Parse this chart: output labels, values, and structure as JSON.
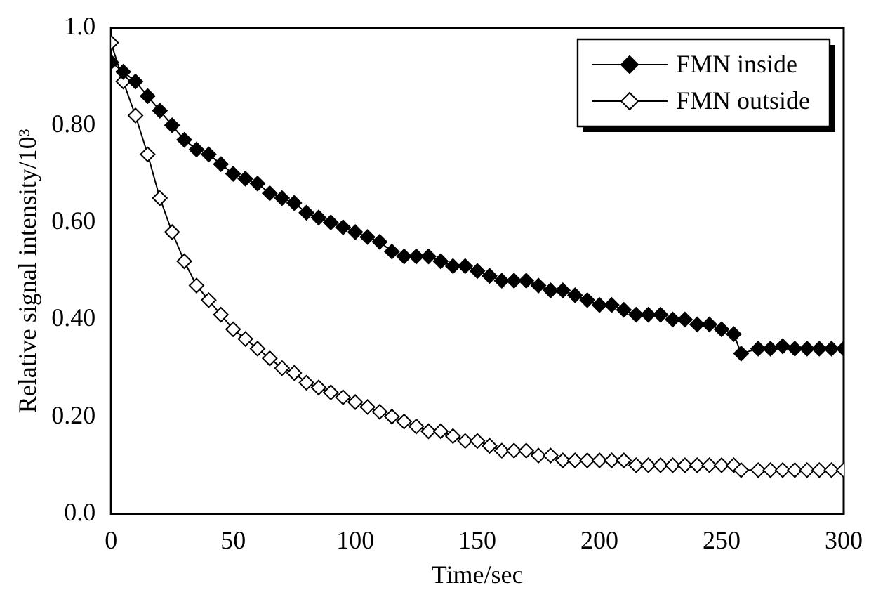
{
  "chart_data": {
    "type": "line",
    "xlabel": "Time/sec",
    "ylabel": "Relative signal intensity/10³",
    "x": [
      0,
      5,
      10,
      15,
      20,
      25,
      30,
      35,
      40,
      45,
      50,
      55,
      60,
      65,
      70,
      75,
      80,
      85,
      90,
      95,
      100,
      105,
      110,
      115,
      120,
      125,
      130,
      135,
      140,
      145,
      150,
      155,
      160,
      165,
      170,
      175,
      180,
      185,
      190,
      195,
      200,
      205,
      210,
      215,
      220,
      225,
      230,
      235,
      240,
      245,
      250,
      255,
      258,
      265,
      270,
      275,
      280,
      285,
      290,
      295,
      300
    ],
    "series": [
      {
        "name": "FMN inside",
        "color": "#000000",
        "values": [
          0.93,
          0.91,
          0.89,
          0.86,
          0.83,
          0.8,
          0.77,
          0.75,
          0.74,
          0.72,
          0.7,
          0.69,
          0.68,
          0.66,
          0.65,
          0.64,
          0.62,
          0.61,
          0.6,
          0.59,
          0.58,
          0.57,
          0.56,
          0.54,
          0.53,
          0.53,
          0.53,
          0.52,
          0.51,
          0.51,
          0.5,
          0.49,
          0.48,
          0.48,
          0.48,
          0.47,
          0.46,
          0.46,
          0.45,
          0.44,
          0.43,
          0.43,
          0.42,
          0.41,
          0.41,
          0.41,
          0.4,
          0.4,
          0.39,
          0.39,
          0.38,
          0.37,
          0.33,
          0.34,
          0.34,
          0.345,
          0.34,
          0.34,
          0.34,
          0.34,
          0.34
        ]
      },
      {
        "name": "FMN outside",
        "color": "#000000",
        "values": [
          0.97,
          0.89,
          0.82,
          0.74,
          0.65,
          0.58,
          0.52,
          0.47,
          0.44,
          0.41,
          0.38,
          0.36,
          0.34,
          0.32,
          0.3,
          0.29,
          0.27,
          0.26,
          0.25,
          0.24,
          0.23,
          0.22,
          0.21,
          0.2,
          0.19,
          0.18,
          0.17,
          0.17,
          0.16,
          0.15,
          0.15,
          0.14,
          0.13,
          0.13,
          0.13,
          0.12,
          0.12,
          0.11,
          0.11,
          0.11,
          0.11,
          0.11,
          0.11,
          0.1,
          0.1,
          0.1,
          0.1,
          0.1,
          0.1,
          0.1,
          0.1,
          0.1,
          0.09,
          0.09,
          0.09,
          0.09,
          0.09,
          0.09,
          0.09,
          0.09,
          0.09
        ]
      }
    ],
    "xlim": [
      0,
      300
    ],
    "xticks": [
      0,
      50,
      100,
      150,
      200,
      250,
      300
    ],
    "ylim": [
      0,
      1
    ],
    "yticks": [
      {
        "value": 0,
        "label": "0.0"
      },
      {
        "value": 0.2,
        "label": "0.20"
      },
      {
        "value": 0.4,
        "label": "0.40"
      },
      {
        "value": 0.6,
        "label": "0.60"
      },
      {
        "value": 0.8,
        "label": "0.80"
      },
      {
        "value": 1,
        "label": "1.0"
      }
    ],
    "grid": false,
    "legend": "top right",
    "marker": "diamond",
    "line_style": "solid"
  }
}
